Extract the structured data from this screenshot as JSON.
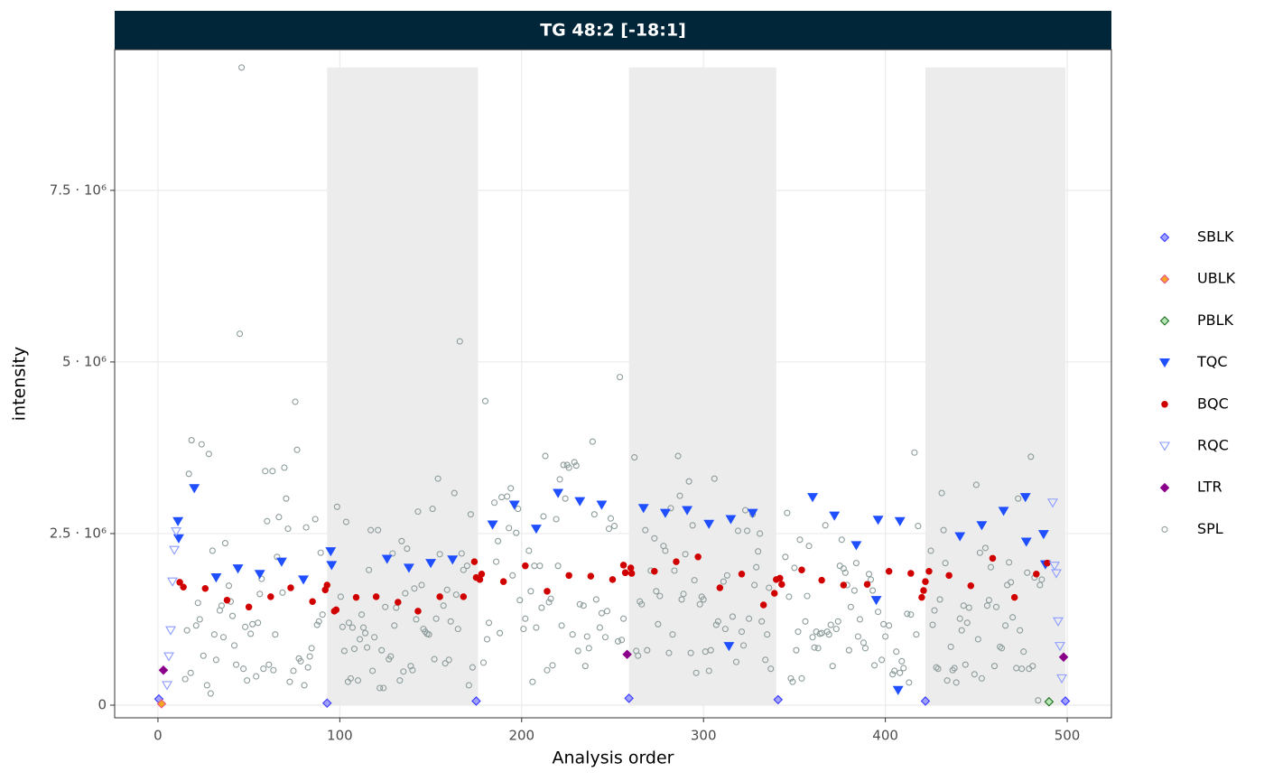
{
  "chart_data": {
    "type": "scatter",
    "title": "TG 48:2 [-18:1]",
    "x_label": "Analysis order",
    "y_label": "intensity",
    "xlim": [
      -23.8,
      524.3
    ],
    "ylim": [
      -184000,
      9550000
    ],
    "xticks": [
      0,
      100,
      200,
      300,
      400,
      500
    ],
    "yticks": [
      0,
      {
        "value": 2500000,
        "label": "2.5 · 10⁶"
      },
      {
        "value": 5000000,
        "label": "5 · 10⁶"
      },
      {
        "value": 7500000,
        "label": "7.5 · 10⁶"
      }
    ],
    "grid": true,
    "legend": "right",
    "batches": [
      [
        93,
        176
      ],
      [
        259,
        340
      ],
      [
        422,
        499
      ]
    ],
    "batch_color": "#ececec",
    "series": [
      {
        "name": "SBLK",
        "color": "#3a3aff",
        "fill": "#a0a0ff",
        "shape": "diamond",
        "x": [
          0.5,
          93,
          175,
          259,
          341,
          422,
          499
        ],
        "values": [
          90000.0,
          30000.0,
          60000.0,
          100000.0,
          80000.0,
          60000.0,
          60000.0
        ]
      },
      {
        "name": "UBLK",
        "color": "#e75480",
        "fill": "#f5a623",
        "shape": "diamond",
        "x": [
          2
        ],
        "values": [
          20000.0
        ]
      },
      {
        "name": "PBLK",
        "color": "#1a6b1a",
        "fill": "#b5e6b5",
        "shape": "diamond",
        "x": [
          490
        ],
        "values": [
          50000.0
        ]
      },
      {
        "name": "TQC",
        "color": "#1f4fff",
        "fill": "#1f4fff",
        "shape": "triangle-down",
        "x": [
          11,
          11.4,
          20,
          32,
          44,
          56,
          68,
          80,
          95,
          95.5,
          126,
          138,
          150,
          162,
          184,
          196,
          208,
          220,
          232,
          244,
          267,
          279,
          291,
          303,
          315,
          314,
          327,
          360,
          372,
          384,
          396,
          395,
          408,
          407,
          441,
          453,
          465,
          477,
          477.5,
          487,
          488
        ],
        "values": [
          2680000.0,
          2430000.0,
          3160000.0,
          1860000.0,
          1990000.0,
          1910000.0,
          2090000.0,
          1830000.0,
          2240000.0,
          2040000.0,
          2130000.0,
          2000000.0,
          2070000.0,
          2120000.0,
          2630000.0,
          2920000.0,
          2570000.0,
          3090000.0,
          2970000.0,
          2920000.0,
          2870000.0,
          2800000.0,
          2840000.0,
          2640000.0,
          2710000.0,
          860000.0,
          2800000.0,
          3030000.0,
          2760000.0,
          2330000.0,
          2700000.0,
          1530000.0,
          2680000.0,
          220000.0,
          2460000.0,
          2620000.0,
          2830000.0,
          3030000.0,
          2380000.0,
          2490000.0,
          2050000.0
        ]
      },
      {
        "name": "BQC",
        "color": "#d10000",
        "fill": "#d10000",
        "shape": "circle",
        "x": [
          12,
          14,
          26,
          38,
          50,
          62,
          73,
          85,
          92,
          93,
          97,
          98,
          109,
          120,
          132,
          143,
          155,
          168,
          174,
          175,
          177,
          178,
          190,
          202,
          214,
          226,
          238,
          250,
          256,
          257,
          260,
          260.5,
          273,
          285,
          297,
          309,
          321,
          333,
          339,
          340,
          342,
          343,
          354,
          365,
          377,
          390,
          402,
          414,
          420,
          421,
          422,
          424,
          435,
          447,
          459,
          471,
          483,
          489
        ],
        "values": [
          1790000.0,
          1720000.0,
          1700000.0,
          1530000.0,
          1430000.0,
          1580000.0,
          1710000.0,
          1510000.0,
          1680000.0,
          1750000.0,
          1370000.0,
          1390000.0,
          1570000.0,
          1580000.0,
          1500000.0,
          1370000.0,
          1580000.0,
          1580000.0,
          2090000.0,
          1860000.0,
          1830000.0,
          1910000.0,
          1800000.0,
          2030000.0,
          1660000.0,
          1890000.0,
          1880000.0,
          1830000.0,
          2040000.0,
          1930000.0,
          2000000.0,
          1920000.0,
          1950000.0,
          2090000.0,
          2160000.0,
          1710000.0,
          1910000.0,
          1460000.0,
          1630000.0,
          1830000.0,
          1850000.0,
          1760000.0,
          1970000.0,
          1820000.0,
          1750000.0,
          1760000.0,
          1950000.0,
          1920000.0,
          1570000.0,
          1670000.0,
          1800000.0,
          1950000.0,
          1890000.0,
          1740000.0,
          2140000.0,
          1570000.0,
          1910000.0,
          2070000.0
        ]
      },
      {
        "name": "RQC",
        "color": "#8c9cff",
        "fill": "none",
        "shape": "triangle-down",
        "x": [
          5,
          6,
          7,
          8,
          9,
          10,
          492,
          493,
          494,
          495,
          496,
          497
        ],
        "values": [
          290000.0,
          710000.0,
          1090000.0,
          1800000.0,
          2260000.0,
          2530000.0,
          2950000.0,
          2030000.0,
          1920000.0,
          1220000.0,
          860000.0,
          390000.0
        ]
      },
      {
        "name": "LTR",
        "color": "#8b008b",
        "fill": "#8b008b",
        "shape": "diamond",
        "x": [
          3,
          258,
          498
        ],
        "values": [
          510000.0,
          740000.0,
          700000.0
        ]
      },
      {
        "name": "SPL",
        "color": "#8d9c9c",
        "fill": "none",
        "shape": "circle",
        "x": [
          16,
          15,
          17,
          18,
          18.5,
          21,
          22,
          23,
          24,
          25,
          27,
          28,
          29,
          30,
          31,
          32,
          34,
          35,
          36,
          37,
          39,
          40,
          41,
          42,
          43,
          45,
          46,
          47,
          48,
          49,
          51,
          52,
          54,
          55,
          56,
          57,
          58,
          59,
          60,
          61,
          63,
          63.5,
          64.5,
          65.5,
          66.5,
          68.5,
          69.5,
          70.5,
          71.5,
          72.5,
          74.5,
          75.5,
          76.5,
          77.5,
          78.5,
          80.5,
          81.5,
          82.5,
          83.5,
          84.5,
          86.5,
          87.5,
          88.5,
          89.5,
          90.5,
          98.5,
          100.5,
          101.5,
          102.5,
          103.5,
          104.5,
          105,
          106,
          107,
          108,
          110,
          111,
          112,
          113,
          114,
          115,
          116,
          117,
          118,
          119,
          121,
          122,
          123,
          124,
          125,
          127,
          128,
          129,
          130,
          131,
          133,
          134,
          135,
          136,
          137,
          139,
          140,
          141,
          142,
          143,
          145,
          146,
          147,
          148,
          149,
          151,
          152,
          153,
          154,
          155,
          157,
          158,
          159,
          160,
          161,
          163,
          164,
          165,
          166,
          167,
          168,
          170,
          171,
          172,
          173,
          179,
          180,
          181,
          182,
          185,
          186,
          187,
          188,
          189,
          192,
          193,
          194,
          195,
          197,
          198,
          199,
          201,
          202,
          204,
          205,
          206,
          207,
          208,
          210,
          211,
          212,
          213,
          214,
          215,
          216,
          217,
          219,
          220,
          221,
          222,
          223,
          224,
          225,
          226,
          228,
          229,
          230,
          231,
          232,
          234,
          235,
          236,
          237,
          239,
          240,
          241,
          243,
          244,
          246,
          247,
          248,
          249,
          251,
          253,
          254,
          255,
          256,
          262,
          263,
          264,
          265,
          266,
          268,
          269,
          271,
          273,
          274,
          275,
          276,
          278,
          279,
          281,
          282,
          283,
          284,
          286,
          287,
          288,
          289,
          290,
          292,
          293,
          294,
          295,
          296,
          298,
          299,
          300,
          301,
          303,
          304,
          306,
          307,
          308,
          311,
          312,
          313,
          316,
          318,
          319,
          321,
          322,
          323,
          324,
          325,
          327,
          328,
          329,
          330,
          331,
          332,
          334,
          335,
          336,
          337,
          345,
          346,
          347,
          348,
          349,
          350,
          351,
          352,
          353,
          354,
          356,
          357,
          358,
          360,
          361,
          362,
          363,
          364,
          365,
          367,
          368,
          369,
          370,
          371,
          373,
          374,
          375,
          376,
          377,
          378,
          379,
          380,
          381,
          383,
          384,
          385,
          386,
          388,
          389,
          391,
          392,
          393,
          394,
          396,
          398,
          399,
          400,
          402,
          404,
          405,
          406,
          408,
          409,
          410,
          412,
          413,
          414,
          416,
          417,
          418,
          425,
          426,
          427,
          428,
          429,
          430,
          431,
          432,
          433,
          434,
          436,
          437,
          438,
          439,
          441,
          442,
          443,
          444,
          445,
          446,
          449,
          450,
          451,
          452,
          453,
          455,
          456,
          457,
          458,
          460,
          461,
          463,
          464,
          466,
          467,
          468,
          469,
          470,
          472,
          473,
          474,
          475,
          476,
          478,
          479,
          480,
          481,
          482,
          484,
          485,
          486
        ],
        "values": [
          1090000.0,
          380000.0,
          3370000.0,
          470000.0,
          3860000.0,
          1160000.0,
          1490000.0,
          1250000.0,
          3800000.0,
          720000.0,
          290000.0,
          3660000.0,
          170000.0,
          2250000.0,
          1030000.0,
          660000.0,
          1380000.0,
          1450000.0,
          990000.0,
          2360000.0,
          1740000.0,
          1510000.0,
          1300000.0,
          870000.0,
          590000.0,
          5410000.0,
          9290000.0,
          530000.0,
          1140000.0,
          360000.0,
          1040000.0,
          1180000.0,
          420000.0,
          1200000.0,
          1620000.0,
          1840000.0,
          530000.0,
          3410000.0,
          2680000.0,
          590000.0,
          3410000.0,
          510000.0,
          1030000.0,
          2160000.0,
          2740000.0,
          1640000.0,
          3460000.0,
          3010000.0,
          2570000.0,
          340000.0,
          500000.0,
          4420000.0,
          3720000.0,
          680000.0,
          640000.0,
          290000.0,
          2590000.0,
          550000.0,
          710000.0,
          830000.0,
          2710000.0,
          1170000.0,
          1220000.0,
          2220000.0,
          1320000.0,
          2890000.0,
          1580000.0,
          1140000.0,
          790000.0,
          2670000.0,
          340000.0,
          1200000.0,
          390000.0,
          1130000.0,
          820000.0,
          360000.0,
          960000.0,
          1320000.0,
          1130000.0,
          1050000.0,
          840000.0,
          1970000.0,
          2550000.0,
          500000.0,
          990000.0,
          2550000.0,
          250000.0,
          800000.0,
          250000.0,
          1430000.0,
          670000.0,
          710000.0,
          2210000.0,
          1160000.0,
          1420000.0,
          360000.0,
          2390000.0,
          490000.0,
          1630000.0,
          2280000.0,
          570000.0,
          510000.0,
          1700000.0,
          1250000.0,
          2820000.0,
          1750000.0,
          1110000.0,
          1070000.0,
          1040000.0,
          1030000.0,
          2860000.0,
          670000.0,
          1260000.0,
          3300000.0,
          2200000.0,
          1450000.0,
          610000.0,
          1680000.0,
          660000.0,
          1220000.0,
          3090000.0,
          1610000.0,
          1110000.0,
          5300000.0,
          2210000.0,
          1970000.0,
          2030000.0,
          290000.0,
          2780000.0,
          550000.0,
          620000.0,
          4430000.0,
          960000.0,
          1200000.0,
          2950000.0,
          2090000.0,
          2390000.0,
          1050000.0,
          3030000.0,
          3040000.0,
          2580000.0,
          3160000.0,
          1890000.0,
          2510000.0,
          2860000.0,
          1530000.0,
          1110000.0,
          1260000.0,
          2250000.0,
          1660000.0,
          340000.0,
          2030000.0,
          1130000.0,
          2030000.0,
          1420000.0,
          2750000.0,
          3630000.0,
          510000.0,
          1500000.0,
          1550000.0,
          580000.0,
          2710000.0,
          2030000.0,
          3290000.0,
          1160000.0,
          3500000.0,
          3010000.0,
          3500000.0,
          3460000.0,
          1030000.0,
          3540000.0,
          3490000.0,
          790000.0,
          1470000.0,
          1450000.0,
          570000.0,
          1000000.0,
          830000.0,
          3840000.0,
          2780000.0,
          1540000.0,
          1130000.0,
          1340000.0,
          990000.0,
          1370000.0,
          2570000.0,
          2720000.0,
          2610000.0,
          930000.0,
          4780000.0,
          950000.0,
          1260000.0,
          3610000.0,
          790000.0,
          720000.0,
          1510000.0,
          1470000.0,
          2550000.0,
          800000.0,
          1960000.0,
          2430000.0,
          1660000.0,
          1180000.0,
          1590000.0,
          2320000.0,
          2250000.0,
          760000.0,
          2870000.0,
          1030000.0,
          1960000.0,
          3630000.0,
          3050000.0,
          1540000.0,
          1620000.0,
          2200000.0,
          3260000.0,
          760000.0,
          2620000.0,
          1820000.0,
          470000.0,
          1470000.0,
          1580000.0,
          1540000.0,
          780000.0,
          500000.0,
          800000.0,
          3300000.0,
          1170000.0,
          1220000.0,
          1800000.0,
          1110000.0,
          1890000.0,
          1290000.0,
          630000.0,
          2540000.0,
          1070000.0,
          870000.0,
          2840000.0,
          2540000.0,
          1260000.0,
          2780000.0,
          1750000.0,
          2010000.0,
          2240000.0,
          2500000.0,
          1220000.0,
          660000.0,
          1030000.0,
          1710000.0,
          530000.0,
          2160000.0,
          2800000.0,
          1580000.0,
          390000.0,
          340000.0,
          2000000.0,
          800000.0,
          1070000.0,
          2410000.0,
          390000.0,
          1220000.0,
          1590000.0,
          2320000.0,
          990000.0,
          840000.0,
          1070000.0,
          830000.0,
          1040000.0,
          1050000.0,
          2620000.0,
          1070000.0,
          1030000.0,
          1170000.0,
          570000.0,
          1110000.0,
          1220000.0,
          2030000.0,
          2410000.0,
          1990000.0,
          1930000.0,
          1750000.0,
          800000.0,
          1430000.0,
          1670000.0,
          2070000.0,
          1000000.0,
          1250000.0,
          910000.0,
          830000.0,
          1910000.0,
          1830000.0,
          1670000.0,
          580000.0,
          1360000.0,
          660000.0,
          1180000.0,
          1000000.0,
          1160000.0,
          450000.0,
          500000.0,
          780000.0,
          470000.0,
          640000.0,
          540000.0,
          1330000.0,
          330000.0,
          1320000.0,
          3680000.0,
          1030000.0,
          2610000.0,
          2250000.0,
          1170000.0,
          1380000.0,
          550000.0,
          530000.0,
          1540000.0,
          3090000.0,
          2550000.0,
          2070000.0,
          360000.0,
          850000.0,
          510000.0,
          540000.0,
          330000.0,
          1260000.0,
          1090000.0,
          1450000.0,
          590000.0,
          1200000.0,
          1420000.0,
          450000.0,
          3210000.0,
          960000.0,
          2220000.0,
          390000.0,
          2290000.0,
          1450000.0,
          1530000.0,
          2010000.0,
          570000.0,
          1430000.0,
          850000.0,
          830000.0,
          1160000.0,
          1750000.0,
          2080000.0,
          1790000.0,
          1280000.0,
          540000.0,
          3010000.0,
          1090000.0,
          530000.0,
          780000.0,
          1930000.0,
          530000.0,
          3620000.0,
          570000.0,
          1860000.0,
          70000.0,
          1750000.0,
          1830000.0
        ]
      }
    ]
  }
}
